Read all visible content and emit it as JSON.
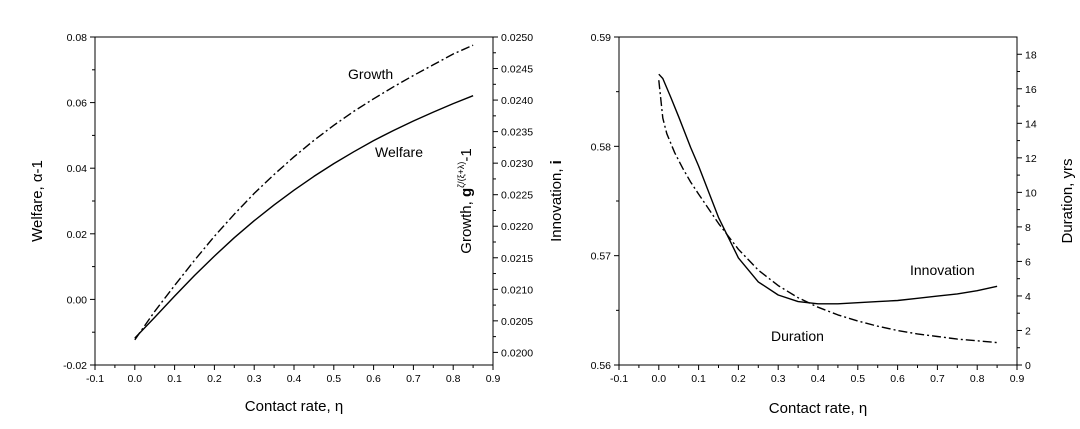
{
  "chart_data": [
    {
      "type": "line",
      "xlabel": "Contact rate, η",
      "ylabel_left": "Welfare, α-1",
      "ylabel_right": {
        "main": "Growth, ",
        "bold": "g",
        "sup": "ζ/(ξ+λ)",
        "tail": "-1"
      },
      "xlim": [
        -0.1,
        0.9
      ],
      "xticks": [
        -0.1,
        0.0,
        0.1,
        0.2,
        0.3,
        0.4,
        0.5,
        0.6,
        0.7,
        0.8,
        0.9
      ],
      "xtick_labels": [
        "-0.1",
        "0.0",
        "0.1",
        "0.2",
        "0.3",
        "0.4",
        "0.5",
        "0.6",
        "0.7",
        "0.8",
        "0.9"
      ],
      "ylim_left": [
        -0.02,
        0.08
      ],
      "yticks_left_labels": [
        "-0.02",
        "0.00",
        "0.02",
        "0.04",
        "0.06",
        "0.08"
      ],
      "yticks_left": [
        -0.02,
        0.0,
        0.02,
        0.04,
        0.06,
        0.08
      ],
      "ylim_right": [
        0.0198,
        0.025
      ],
      "yticks_right": [
        0.02,
        0.0205,
        0.021,
        0.0215,
        0.022,
        0.0225,
        0.023,
        0.0235,
        0.024,
        0.0245,
        0.025
      ],
      "yticks_right_labels": [
        "0.0200",
        "0.0205",
        "0.0210",
        "0.0215",
        "0.0220",
        "0.0225",
        "0.0230",
        "0.0235",
        "0.0240",
        "0.0245",
        "0.0250"
      ],
      "series": [
        {
          "name": "Welfare",
          "axis": "left",
          "style": "solid",
          "x": [
            0.0,
            0.05,
            0.1,
            0.15,
            0.2,
            0.25,
            0.3,
            0.35,
            0.4,
            0.45,
            0.5,
            0.55,
            0.6,
            0.65,
            0.7,
            0.75,
            0.8,
            0.85
          ],
          "y": [
            -0.0118,
            -0.0055,
            0.001,
            0.0073,
            0.0132,
            0.0188,
            0.024,
            0.0288,
            0.0333,
            0.0375,
            0.0414,
            0.045,
            0.0484,
            0.0515,
            0.0544,
            0.0571,
            0.0597,
            0.0621
          ]
        },
        {
          "name": "Growth",
          "axis": "right",
          "style": "dashdot",
          "x": [
            0.0,
            0.05,
            0.1,
            0.15,
            0.2,
            0.25,
            0.3,
            0.35,
            0.4,
            0.45,
            0.5,
            0.55,
            0.6,
            0.65,
            0.7,
            0.75,
            0.8,
            0.85
          ],
          "y": [
            0.0202,
            0.02065,
            0.02106,
            0.02146,
            0.02184,
            0.02219,
            0.02252,
            0.02282,
            0.0231,
            0.02336,
            0.0236,
            0.02382,
            0.02402,
            0.02421,
            0.02439,
            0.02456,
            0.02473,
            0.02487
          ]
        }
      ],
      "annotations": [
        "Growth",
        "Welfare"
      ]
    },
    {
      "type": "line",
      "xlabel": "Contact rate, η",
      "ylabel_left": {
        "main": "Innovation, ",
        "bold": "i"
      },
      "ylabel_right": "Duration, yrs",
      "xlim": [
        -0.1,
        0.9
      ],
      "xticks": [
        -0.1,
        0.0,
        0.1,
        0.2,
        0.3,
        0.4,
        0.5,
        0.6,
        0.7,
        0.8,
        0.9
      ],
      "xtick_labels": [
        "-0.1",
        "0.0",
        "0.1",
        "0.2",
        "0.3",
        "0.4",
        "0.5",
        "0.6",
        "0.7",
        "0.8",
        "0.9"
      ],
      "ylim_left": [
        0.56,
        0.59
      ],
      "yticks_left": [
        0.56,
        0.57,
        0.58,
        0.59
      ],
      "yticks_left_labels": [
        "0.56",
        "0.57",
        "0.58",
        "0.59"
      ],
      "ylim_right": [
        0,
        19
      ],
      "yticks_right": [
        0,
        2,
        4,
        6,
        8,
        10,
        12,
        14,
        16,
        18
      ],
      "yticks_right_labels": [
        "0",
        "2",
        "4",
        "6",
        "8",
        "10",
        "12",
        "14",
        "16",
        "18"
      ],
      "series": [
        {
          "name": "Innovation",
          "axis": "left",
          "style": "solid",
          "x": [
            0.0,
            0.01,
            0.03,
            0.05,
            0.08,
            0.1,
            0.15,
            0.2,
            0.25,
            0.3,
            0.35,
            0.4,
            0.45,
            0.5,
            0.55,
            0.6,
            0.65,
            0.7,
            0.75,
            0.8,
            0.85
          ],
          "y": [
            0.5866,
            0.5862,
            0.5845,
            0.5827,
            0.5799,
            0.5782,
            0.5735,
            0.5698,
            0.5676,
            0.5664,
            0.5658,
            0.5656,
            0.5656,
            0.5657,
            0.5658,
            0.5659,
            0.5661,
            0.5663,
            0.5665,
            0.5668,
            0.5672
          ]
        },
        {
          "name": "Duration",
          "axis": "right",
          "style": "dashdot",
          "x": [
            0.0,
            0.01,
            0.02,
            0.04,
            0.06,
            0.08,
            0.1,
            0.15,
            0.2,
            0.25,
            0.3,
            0.35,
            0.4,
            0.45,
            0.5,
            0.55,
            0.6,
            0.65,
            0.7,
            0.75,
            0.8,
            0.85
          ],
          "y": [
            16.5,
            14.3,
            13.4,
            12.3,
            11.4,
            10.6,
            9.9,
            8.2,
            6.7,
            5.5,
            4.6,
            3.9,
            3.35,
            2.9,
            2.55,
            2.25,
            2.0,
            1.8,
            1.65,
            1.5,
            1.4,
            1.3
          ]
        }
      ],
      "annotations": [
        "Innovation",
        "Duration"
      ]
    }
  ]
}
